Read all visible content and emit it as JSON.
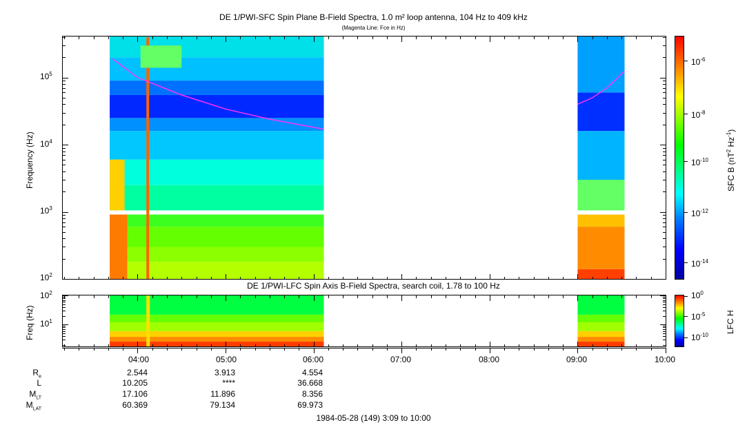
{
  "page": {
    "title": "DE 1/PWI-SFC  Spin Plane B-Field Spectra, 1.0 m² loop antenna, 104 Hz to 409 kHz",
    "subtitle": "(Magenta Line: Fce in Hz)",
    "date_label": "1984-05-28 (149) 3:09 to 10:00"
  },
  "colors": {
    "magenta_line": "#ff33ff",
    "colormap": [
      "#00009f",
      "#0000ff",
      "#0060ff",
      "#00c8ff",
      "#00ffc8",
      "#00ff64",
      "#64ff00",
      "#c8ff00",
      "#ffff00",
      "#ffc800",
      "#ff6400",
      "#ff0000"
    ]
  },
  "chart_data": [
    {
      "type": "heatmap",
      "title": "DE 1/PWI-SFC  Spin Plane B-Field Spectra, 1.0 m² loop antenna, 104 Hz to 409 kHz",
      "ylabel": "Frequency (Hz)",
      "yscale": "log",
      "ylim": [
        100,
        409000
      ],
      "y_ticks": [
        "10^2",
        "10^3",
        "10^4",
        "10^5"
      ],
      "x_ticks": [
        "04:00",
        "05:00",
        "06:00",
        "07:00",
        "08:00",
        "09:00",
        "10:00"
      ],
      "xlim": [
        "03:09",
        "10:00"
      ],
      "data_intervals": [
        {
          "start": "03:41",
          "end": "06:07"
        },
        {
          "start": "09:00",
          "end": "09:32"
        }
      ],
      "gap_band_hz": [
        910,
        1050
      ],
      "colorbar": {
        "label": "SFC B (nT² Hz⁻¹)",
        "scale": "log",
        "ticks": [
          "10^-6",
          "10^-8",
          "10^-10",
          "10^-12",
          "10^-14"
        ]
      },
      "fce_line": {
        "name": "Fce in Hz",
        "segments": [
          {
            "time": [
              "03:43",
              "04:00",
              "04:30",
              "05:00",
              "05:30",
              "06:07"
            ],
            "hz": [
              190000,
              100000,
              55000,
              34000,
              24000,
              17000
            ]
          },
          {
            "time": [
              "09:00",
              "09:10",
              "09:20",
              "09:32"
            ],
            "hz": [
              40000,
              50000,
              70000,
              125000
            ]
          }
        ]
      }
    },
    {
      "type": "heatmap",
      "title": "DE 1/PWI-LFC  Spin Axis B-Field Spectra, search coil, 1.78 to 100 Hz",
      "ylabel": "Freq (Hz)",
      "yscale": "log",
      "ylim": [
        1.78,
        100
      ],
      "y_ticks": [
        "10^1",
        "10^2"
      ],
      "x_ticks": [
        "04:00",
        "05:00",
        "06:00",
        "07:00",
        "08:00",
        "09:00",
        "10:00"
      ],
      "xlim": [
        "03:09",
        "10:00"
      ],
      "data_intervals": [
        {
          "start": "03:41",
          "end": "06:07"
        },
        {
          "start": "09:00",
          "end": "09:32"
        }
      ],
      "colorbar": {
        "label": "LFC H",
        "scale": "log",
        "ticks": [
          "10^0",
          "10^-5",
          "10^-10"
        ]
      }
    }
  ],
  "ephemeris": {
    "labels": [
      {
        "main": "R",
        "sub": "e"
      },
      {
        "main": "L",
        "sub": ""
      },
      {
        "main": "M",
        "sub": "LT"
      },
      {
        "main": "M",
        "sub": "LAT"
      }
    ],
    "times": [
      "04:00",
      "05:00",
      "06:00"
    ],
    "rows": [
      [
        "2.544",
        "3.913",
        "4.554"
      ],
      [
        "10.205",
        "****",
        "36.668"
      ],
      [
        "17.106",
        "11.896",
        "8.356"
      ],
      [
        "60.369",
        "79.134",
        "69.973"
      ]
    ]
  },
  "axis_text": {
    "top_ylabel": "Frequency (Hz)",
    "bottom_ylabel": "Freq (Hz)",
    "top_cbar_label_prefix": "SFC B (nT",
    "top_cbar_label_sup1": "2",
    "top_cbar_label_mid": " Hz",
    "top_cbar_label_sup2": "-1",
    "top_cbar_label_suffix": ")",
    "bottom_cbar_label": "LFC H",
    "bottom_title": "DE 1/PWI-LFC  Spin Axis B-Field Spectra, search coil, 1.78 to 100 Hz",
    "top_yticks": [
      {
        "base": "10",
        "exp": "5"
      },
      {
        "base": "10",
        "exp": "4"
      },
      {
        "base": "10",
        "exp": "3"
      },
      {
        "base": "10",
        "exp": "2"
      }
    ],
    "bottom_yticks": [
      {
        "base": "10",
        "exp": "2"
      },
      {
        "base": "10",
        "exp": "1"
      }
    ],
    "top_cbar_ticks": [
      {
        "base": "10",
        "exp": "-6"
      },
      {
        "base": "10",
        "exp": "-8"
      },
      {
        "base": "10",
        "exp": "-10"
      },
      {
        "base": "10",
        "exp": "-12"
      },
      {
        "base": "10",
        "exp": "-14"
      }
    ],
    "bottom_cbar_ticks": [
      {
        "base": "10",
        "exp": "0"
      },
      {
        "base": "10",
        "exp": "-5"
      },
      {
        "base": "10",
        "exp": "-10"
      }
    ]
  }
}
